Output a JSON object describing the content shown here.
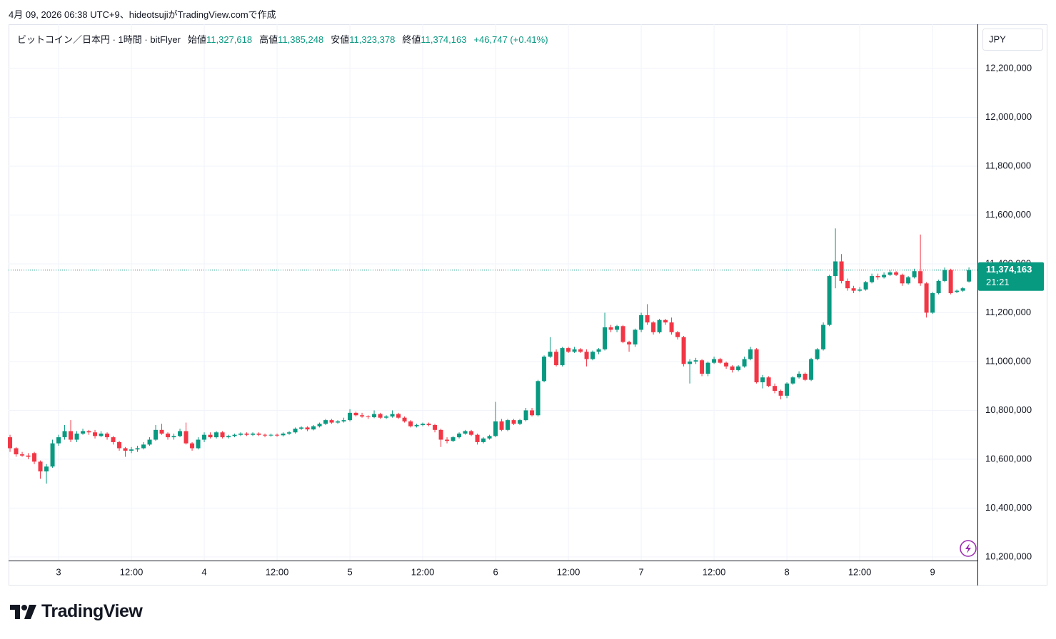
{
  "header": {
    "caption": "4月 09, 2026 06:38 UTC+9、hideotsujiがTradingView.comで作成"
  },
  "chart_data": {
    "type": "candlestick",
    "symbol": "ビットコイン／日本円 · 1時間 · bitFlyer",
    "ohlc_legend": [
      {
        "label": "始値",
        "value": "11,327,618"
      },
      {
        "label": "高値",
        "value": "11,385,248"
      },
      {
        "label": "安値",
        "value": "11,323,378"
      },
      {
        "label": "終値",
        "value": "11,374,163"
      }
    ],
    "change": "+46,747 (+0.41%)",
    "currency": "JPY",
    "last_price_label": "11,374,163",
    "countdown": "21:21",
    "up_color": "#089981",
    "down_color": "#f23645",
    "grid": true,
    "xlim": [
      -0.24,
      159.4
    ],
    "xticks": [
      {
        "value": 8,
        "label": "3"
      },
      {
        "value": 20,
        "label": "12:00"
      },
      {
        "value": 32,
        "label": "4"
      },
      {
        "value": 44,
        "label": "12:00"
      },
      {
        "value": 56,
        "label": "5"
      },
      {
        "value": 68,
        "label": "12:00"
      },
      {
        "value": 80,
        "label": "6"
      },
      {
        "value": 92,
        "label": "12:00"
      },
      {
        "value": 104,
        "label": "7"
      },
      {
        "value": 116,
        "label": "12:00"
      },
      {
        "value": 128,
        "label": "8"
      },
      {
        "value": 140,
        "label": "12:00"
      },
      {
        "value": 152,
        "label": "9"
      }
    ],
    "ylim": [
      10188000,
      12381000
    ],
    "yticks": [
      {
        "value": 10200000,
        "label": "10,200,000"
      },
      {
        "value": 10400000,
        "label": "10,400,000"
      },
      {
        "value": 10600000,
        "label": "10,600,000"
      },
      {
        "value": 10800000,
        "label": "10,800,000"
      },
      {
        "value": 11000000,
        "label": "11,000,000"
      },
      {
        "value": 11200000,
        "label": "11,200,000"
      },
      {
        "value": 11400000,
        "label": "11,400,000"
      },
      {
        "value": 11600000,
        "label": "11,600,000"
      },
      {
        "value": 11800000,
        "label": "11,800,000"
      },
      {
        "value": 12000000,
        "label": "12,000,000"
      },
      {
        "value": 12200000,
        "label": "12,200,000"
      }
    ],
    "candles": [
      [
        10690000,
        10700000,
        10630000,
        10645000
      ],
      [
        10645000,
        10650000,
        10610000,
        10620000
      ],
      [
        10620000,
        10630000,
        10610000,
        10615000
      ],
      [
        10615000,
        10625000,
        10600000,
        10610000
      ],
      [
        10625000,
        10630000,
        10580000,
        10590000
      ],
      [
        10590000,
        10595000,
        10520000,
        10550000
      ],
      [
        10550000,
        10580000,
        10500000,
        10570000
      ],
      [
        10570000,
        10680000,
        10565000,
        10665000
      ],
      [
        10665000,
        10700000,
        10655000,
        10690000
      ],
      [
        10690000,
        10740000,
        10680000,
        10715000
      ],
      [
        10715000,
        10760000,
        10670000,
        10680000
      ],
      [
        10680000,
        10715000,
        10670000,
        10705000
      ],
      [
        10705000,
        10725000,
        10700000,
        10715000
      ],
      [
        10715000,
        10720000,
        10700000,
        10710000
      ],
      [
        10710000,
        10720000,
        10685000,
        10695000
      ],
      [
        10695000,
        10715000,
        10690000,
        10705000
      ],
      [
        10705000,
        10710000,
        10680000,
        10690000
      ],
      [
        10690000,
        10695000,
        10660000,
        10670000
      ],
      [
        10670000,
        10675000,
        10635000,
        10645000
      ],
      [
        10645000,
        10650000,
        10610000,
        10635000
      ],
      [
        10635000,
        10650000,
        10625000,
        10640000
      ],
      [
        10640000,
        10655000,
        10630000,
        10645000
      ],
      [
        10645000,
        10670000,
        10640000,
        10660000
      ],
      [
        10660000,
        10690000,
        10655000,
        10680000
      ],
      [
        10680000,
        10740000,
        10675000,
        10720000
      ],
      [
        10720000,
        10745000,
        10700000,
        10705000
      ],
      [
        10705000,
        10710000,
        10680000,
        10690000
      ],
      [
        10690000,
        10705000,
        10680000,
        10695000
      ],
      [
        10695000,
        10725000,
        10690000,
        10715000
      ],
      [
        10715000,
        10750000,
        10660000,
        10665000
      ],
      [
        10665000,
        10670000,
        10635000,
        10645000
      ],
      [
        10645000,
        10690000,
        10640000,
        10680000
      ],
      [
        10680000,
        10710000,
        10670000,
        10700000
      ],
      [
        10700000,
        10710000,
        10685000,
        10690000
      ],
      [
        10690000,
        10715000,
        10685000,
        10710000
      ],
      [
        10710000,
        10715000,
        10685000,
        10690000
      ],
      [
        10690000,
        10700000,
        10685000,
        10695000
      ],
      [
        10695000,
        10705000,
        10690000,
        10700000
      ],
      [
        10700000,
        10710000,
        10695000,
        10705000
      ],
      [
        10705000,
        10710000,
        10695000,
        10700000
      ],
      [
        10700000,
        10710000,
        10695000,
        10705000
      ],
      [
        10705000,
        10710000,
        10695000,
        10700000
      ],
      [
        10700000,
        10705000,
        10690000,
        10698000
      ],
      [
        10698000,
        10705000,
        10692000,
        10700000
      ],
      [
        10700000,
        10705000,
        10692000,
        10698000
      ],
      [
        10698000,
        10710000,
        10693000,
        10705000
      ],
      [
        10705000,
        10715000,
        10700000,
        10710000
      ],
      [
        10710000,
        10730000,
        10705000,
        10725000
      ],
      [
        10725000,
        10735000,
        10720000,
        10730000
      ],
      [
        10730000,
        10735000,
        10715000,
        10722000
      ],
      [
        10722000,
        10740000,
        10718000,
        10735000
      ],
      [
        10735000,
        10750000,
        10730000,
        10745000
      ],
      [
        10745000,
        10765000,
        10740000,
        10760000
      ],
      [
        10760000,
        10765000,
        10745000,
        10750000
      ],
      [
        10750000,
        10760000,
        10745000,
        10755000
      ],
      [
        10755000,
        10770000,
        10750000,
        10760000
      ],
      [
        10760000,
        10805000,
        10755000,
        10790000
      ],
      [
        10790000,
        10795000,
        10775000,
        10780000
      ],
      [
        10780000,
        10790000,
        10770000,
        10775000
      ],
      [
        10775000,
        10780000,
        10765000,
        10772000
      ],
      [
        10772000,
        10800000,
        10768000,
        10785000
      ],
      [
        10785000,
        10790000,
        10765000,
        10770000
      ],
      [
        10770000,
        10780000,
        10765000,
        10775000
      ],
      [
        10775000,
        10800000,
        10770000,
        10785000
      ],
      [
        10785000,
        10790000,
        10765000,
        10770000
      ],
      [
        10770000,
        10775000,
        10750000,
        10755000
      ],
      [
        10755000,
        10760000,
        10730000,
        10735000
      ],
      [
        10735000,
        10745000,
        10730000,
        10740000
      ],
      [
        10740000,
        10750000,
        10735000,
        10745000
      ],
      [
        10745000,
        10750000,
        10735000,
        10740000
      ],
      [
        10740000,
        10745000,
        10710000,
        10720000
      ],
      [
        10720000,
        10725000,
        10650000,
        10680000
      ],
      [
        10680000,
        10690000,
        10665000,
        10675000
      ],
      [
        10675000,
        10695000,
        10670000,
        10690000
      ],
      [
        10690000,
        10710000,
        10685000,
        10705000
      ],
      [
        10705000,
        10720000,
        10700000,
        10715000
      ],
      [
        10715000,
        10720000,
        10695000,
        10700000
      ],
      [
        10700000,
        10705000,
        10660000,
        10670000
      ],
      [
        10670000,
        10690000,
        10665000,
        10685000
      ],
      [
        10685000,
        10700000,
        10680000,
        10695000
      ],
      [
        10695000,
        10835000,
        10690000,
        10755000
      ],
      [
        10755000,
        10765000,
        10715000,
        10720000
      ],
      [
        10720000,
        10765000,
        10715000,
        10760000
      ],
      [
        10760000,
        10765000,
        10740000,
        10745000
      ],
      [
        10745000,
        10765000,
        10740000,
        10760000
      ],
      [
        10760000,
        10810000,
        10755000,
        10800000
      ],
      [
        10800000,
        10810000,
        10775000,
        10780000
      ],
      [
        10780000,
        10925000,
        10775000,
        10920000
      ],
      [
        10920000,
        11025000,
        10915000,
        11020000
      ],
      [
        11020000,
        11100000,
        11015000,
        11040000
      ],
      [
        11040000,
        11050000,
        10980000,
        10985000
      ],
      [
        10985000,
        11060000,
        10980000,
        11055000
      ],
      [
        11055000,
        11060000,
        11035000,
        11040000
      ],
      [
        11040000,
        11060000,
        11035000,
        11050000
      ],
      [
        11050000,
        11055000,
        11035000,
        11040000
      ],
      [
        11040000,
        11050000,
        10980000,
        11010000
      ],
      [
        11010000,
        11045000,
        11005000,
        11040000
      ],
      [
        11040000,
        11055000,
        11030000,
        11050000
      ],
      [
        11050000,
        11200000,
        11045000,
        11140000
      ],
      [
        11140000,
        11150000,
        11120000,
        11130000
      ],
      [
        11130000,
        11150000,
        11120000,
        11145000
      ],
      [
        11145000,
        11150000,
        11075000,
        11080000
      ],
      [
        11080000,
        11085000,
        11040000,
        11070000
      ],
      [
        11070000,
        11135000,
        11060000,
        11130000
      ],
      [
        11130000,
        11200000,
        11120000,
        11190000
      ],
      [
        11190000,
        11235000,
        11150000,
        11160000
      ],
      [
        11160000,
        11165000,
        11110000,
        11120000
      ],
      [
        11120000,
        11175000,
        11115000,
        11170000
      ],
      [
        11170000,
        11175000,
        11150000,
        11160000
      ],
      [
        11160000,
        11180000,
        11110000,
        11120000
      ],
      [
        11120000,
        11125000,
        11090000,
        11100000
      ],
      [
        11100000,
        11105000,
        10980000,
        10990000
      ],
      [
        10990000,
        11010000,
        10910000,
        11000000
      ],
      [
        11000000,
        11015000,
        10990000,
        11005000
      ],
      [
        11005000,
        11010000,
        10940000,
        10950000
      ],
      [
        10950000,
        11000000,
        10940000,
        10995000
      ],
      [
        10995000,
        11020000,
        10990000,
        11010000
      ],
      [
        11010000,
        11015000,
        10990000,
        10995000
      ],
      [
        10995000,
        11000000,
        10970000,
        10980000
      ],
      [
        10980000,
        10985000,
        10955000,
        10965000
      ],
      [
        10965000,
        10985000,
        10960000,
        10980000
      ],
      [
        10980000,
        11020000,
        10975000,
        11010000
      ],
      [
        11010000,
        11060000,
        11005000,
        11050000
      ],
      [
        11050000,
        11055000,
        10910000,
        10915000
      ],
      [
        10915000,
        10945000,
        10890000,
        10935000
      ],
      [
        10935000,
        10940000,
        10895000,
        10900000
      ],
      [
        10900000,
        10910000,
        10870000,
        10880000
      ],
      [
        10880000,
        10885000,
        10845000,
        10860000
      ],
      [
        10860000,
        10915000,
        10850000,
        10910000
      ],
      [
        10910000,
        10940000,
        10905000,
        10935000
      ],
      [
        10935000,
        10960000,
        10930000,
        10950000
      ],
      [
        10950000,
        10955000,
        10920000,
        10925000
      ],
      [
        10925000,
        11015000,
        10920000,
        11010000
      ],
      [
        11010000,
        11055000,
        11005000,
        11050000
      ],
      [
        11050000,
        11160000,
        11045000,
        11150000
      ],
      [
        11150000,
        11355000,
        11145000,
        11350000
      ],
      [
        11350000,
        11545000,
        11300000,
        11410000
      ],
      [
        11410000,
        11440000,
        11320000,
        11330000
      ],
      [
        11330000,
        11340000,
        11290000,
        11300000
      ],
      [
        11300000,
        11310000,
        11280000,
        11290000
      ],
      [
        11290000,
        11305000,
        11285000,
        11295000
      ],
      [
        11295000,
        11330000,
        11290000,
        11325000
      ],
      [
        11325000,
        11360000,
        11320000,
        11350000
      ],
      [
        11350000,
        11360000,
        11335000,
        11345000
      ],
      [
        11345000,
        11365000,
        11340000,
        11355000
      ],
      [
        11355000,
        11375000,
        11350000,
        11365000
      ],
      [
        11365000,
        11370000,
        11350000,
        11355000
      ],
      [
        11355000,
        11360000,
        11310000,
        11320000
      ],
      [
        11320000,
        11350000,
        11315000,
        11345000
      ],
      [
        11345000,
        11380000,
        11340000,
        11370000
      ],
      [
        11370000,
        11520000,
        11310000,
        11320000
      ],
      [
        11320000,
        11325000,
        11180000,
        11200000
      ],
      [
        11200000,
        11285000,
        11195000,
        11280000
      ],
      [
        11280000,
        11335000,
        11275000,
        11330000
      ],
      [
        11330000,
        11385000,
        11325000,
        11375000
      ],
      [
        11375000,
        11380000,
        11275000,
        11280000
      ],
      [
        11285000,
        11295000,
        11280000,
        11290000
      ],
      [
        11290000,
        11305000,
        11285000,
        11300000
      ],
      [
        11327618,
        11385248,
        11323378,
        11374163
      ]
    ]
  },
  "branding": "TradingView"
}
